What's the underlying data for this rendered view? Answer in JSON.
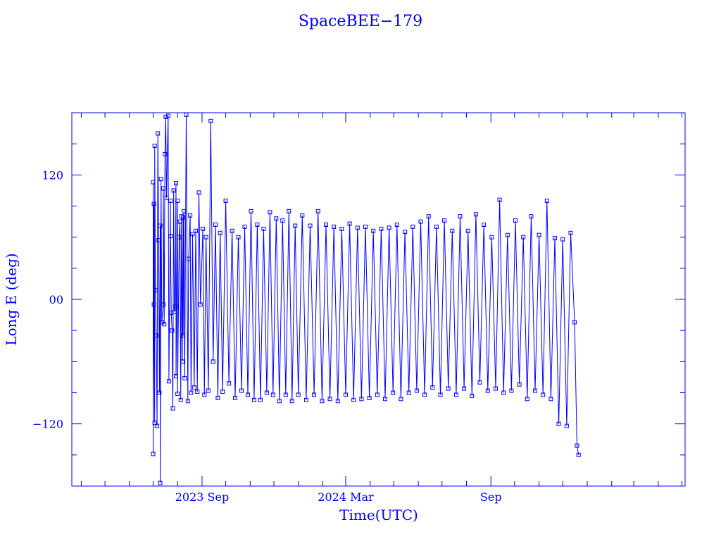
{
  "chart_data": {
    "type": "scatter",
    "title": "SpaceBEE−179",
    "xlabel": "Time(UTC)",
    "ylabel": "Long E (deg)",
    "x_tick_labels": [
      {
        "date": "2023-09-01",
        "label": "2023 Sep"
      },
      {
        "date": "2024-03-01",
        "label": "2024 Mar"
      },
      {
        "date": "2024-09-01",
        "label": "Sep"
      }
    ],
    "y_tick_labels": [
      {
        "value": 120,
        "label": "120"
      },
      {
        "value": 0,
        "label": "00"
      },
      {
        "value": -120,
        "label": "−120"
      }
    ],
    "xlim": [
      "2023-03-20",
      "2025-05-05"
    ],
    "ylim": [
      -180,
      180
    ],
    "data_start": "2023-07-01",
    "data_end": "2024-12-21",
    "line_color": "#0000ff",
    "marker": "open-square",
    "grid": false,
    "series": [
      {
        "points": [
          [
            "2023-07-01",
            113
          ],
          [
            "2023-07-01",
            -149
          ],
          [
            "2023-07-02",
            92
          ],
          [
            "2023-07-02",
            -5
          ],
          [
            "2023-07-03",
            -119
          ],
          [
            "2023-07-03",
            148
          ],
          [
            "2023-07-04",
            9
          ],
          [
            "2023-07-05",
            -35
          ],
          [
            "2023-07-06",
            -122
          ],
          [
            "2023-07-07",
            160
          ],
          [
            "2023-07-08",
            57
          ],
          [
            "2023-07-09",
            -90
          ],
          [
            "2023-07-10",
            71
          ],
          [
            "2023-07-10",
            -177
          ],
          [
            "2023-07-11",
            116
          ],
          [
            "2023-07-12",
            -22
          ],
          [
            "2023-07-14",
            -5
          ],
          [
            "2023-07-14",
            107
          ],
          [
            "2023-07-15",
            -24
          ],
          [
            "2023-07-16",
            140
          ],
          [
            "2023-07-17",
            176
          ],
          [
            "2023-07-18",
            98
          ],
          [
            "2023-07-20",
            177
          ],
          [
            "2023-07-21",
            -79
          ],
          [
            "2023-07-23",
            95
          ],
          [
            "2023-07-23",
            61
          ],
          [
            "2023-07-24",
            -13
          ],
          [
            "2023-07-25",
            -30
          ],
          [
            "2023-07-26",
            -105
          ],
          [
            "2023-07-27",
            105
          ],
          [
            "2023-07-28",
            -12
          ],
          [
            "2023-07-29",
            -7
          ],
          [
            "2023-07-30",
            112
          ],
          [
            "2023-07-30",
            -74
          ],
          [
            "2023-08-01",
            95
          ],
          [
            "2023-08-01",
            -91
          ],
          [
            "2023-08-03",
            60
          ],
          [
            "2023-08-04",
            75
          ],
          [
            "2023-08-05",
            -97
          ],
          [
            "2023-08-06",
            80
          ],
          [
            "2023-08-07",
            -60
          ],
          [
            "2023-08-08",
            79
          ],
          [
            "2023-08-08",
            -35
          ],
          [
            "2023-08-09",
            85
          ],
          [
            "2023-08-10",
            -76
          ],
          [
            "2023-08-12",
            178
          ],
          [
            "2023-08-14",
            -98
          ],
          [
            "2023-08-15",
            39
          ],
          [
            "2023-08-17",
            81
          ],
          [
            "2023-08-18",
            -90
          ],
          [
            "2023-08-20",
            63
          ],
          [
            "2023-08-22",
            -85
          ],
          [
            "2023-08-24",
            66
          ],
          [
            "2023-08-26",
            -89
          ],
          [
            "2023-08-28",
            103
          ],
          [
            "2023-08-30",
            -5
          ],
          [
            "2023-09-02",
            68
          ],
          [
            "2023-09-04",
            -92
          ],
          [
            "2023-09-06",
            60
          ],
          [
            "2023-09-09",
            -88
          ],
          [
            "2023-09-12",
            172
          ],
          [
            "2023-09-15",
            -60
          ],
          [
            "2023-09-18",
            72
          ],
          [
            "2023-09-21",
            -95
          ],
          [
            "2023-09-24",
            64
          ],
          [
            "2023-09-27",
            -89
          ],
          [
            "2023-10-01",
            95
          ],
          [
            "2023-10-05",
            -81
          ],
          [
            "2023-10-09",
            66
          ],
          [
            "2023-10-13",
            -95
          ],
          [
            "2023-10-17",
            60
          ],
          [
            "2023-10-21",
            -88
          ],
          [
            "2023-10-25",
            70
          ],
          [
            "2023-10-29",
            -92
          ],
          [
            "2023-11-02",
            85
          ],
          [
            "2023-11-06",
            -97
          ],
          [
            "2023-11-10",
            72
          ],
          [
            "2023-11-14",
            -97
          ],
          [
            "2023-11-18",
            68
          ],
          [
            "2023-11-22",
            -90
          ],
          [
            "2023-11-26",
            84
          ],
          [
            "2023-11-30",
            -92
          ],
          [
            "2023-12-04",
            78
          ],
          [
            "2023-12-08",
            -98
          ],
          [
            "2023-12-12",
            76
          ],
          [
            "2023-12-16",
            -92
          ],
          [
            "2023-12-20",
            85
          ],
          [
            "2023-12-24",
            -98
          ],
          [
            "2023-12-28",
            71
          ],
          [
            "2024-01-01",
            -92
          ],
          [
            "2024-01-06",
            81
          ],
          [
            "2024-01-11",
            -97
          ],
          [
            "2024-01-16",
            71
          ],
          [
            "2024-01-21",
            -92
          ],
          [
            "2024-01-26",
            85
          ],
          [
            "2024-01-31",
            -98
          ],
          [
            "2024-02-05",
            72
          ],
          [
            "2024-02-10",
            -96
          ],
          [
            "2024-02-15",
            70
          ],
          [
            "2024-02-20",
            -98
          ],
          [
            "2024-02-25",
            68
          ],
          [
            "2024-03-01",
            -92
          ],
          [
            "2024-03-06",
            73
          ],
          [
            "2024-03-11",
            -97
          ],
          [
            "2024-03-16",
            69
          ],
          [
            "2024-03-21",
            -96
          ],
          [
            "2024-03-26",
            70
          ],
          [
            "2024-03-31",
            -95
          ],
          [
            "2024-04-05",
            66
          ],
          [
            "2024-04-10",
            -92
          ],
          [
            "2024-04-15",
            68
          ],
          [
            "2024-04-20",
            -96
          ],
          [
            "2024-04-25",
            69
          ],
          [
            "2024-04-30",
            -90
          ],
          [
            "2024-05-05",
            72
          ],
          [
            "2024-05-10",
            -96
          ],
          [
            "2024-05-15",
            65
          ],
          [
            "2024-05-20",
            -90
          ],
          [
            "2024-05-25",
            70
          ],
          [
            "2024-05-30",
            -88
          ],
          [
            "2024-06-04",
            75
          ],
          [
            "2024-06-09",
            -92
          ],
          [
            "2024-06-14",
            80
          ],
          [
            "2024-06-19",
            -85
          ],
          [
            "2024-06-24",
            70
          ],
          [
            "2024-06-29",
            -92
          ],
          [
            "2024-07-04",
            76
          ],
          [
            "2024-07-09",
            -86
          ],
          [
            "2024-07-14",
            66
          ],
          [
            "2024-07-19",
            -92
          ],
          [
            "2024-07-24",
            80
          ],
          [
            "2024-07-29",
            -86
          ],
          [
            "2024-08-03",
            66
          ],
          [
            "2024-08-08",
            -93
          ],
          [
            "2024-08-13",
            82
          ],
          [
            "2024-08-18",
            -80
          ],
          [
            "2024-08-23",
            72
          ],
          [
            "2024-08-28",
            -88
          ],
          [
            "2024-09-02",
            60
          ],
          [
            "2024-09-07",
            -86
          ],
          [
            "2024-09-12",
            96
          ],
          [
            "2024-09-17",
            -90
          ],
          [
            "2024-09-22",
            62
          ],
          [
            "2024-09-27",
            -88
          ],
          [
            "2024-10-02",
            76
          ],
          [
            "2024-10-07",
            -82
          ],
          [
            "2024-10-12",
            60
          ],
          [
            "2024-10-17",
            -96
          ],
          [
            "2024-10-22",
            80
          ],
          [
            "2024-10-27",
            -88
          ],
          [
            "2024-11-01",
            62
          ],
          [
            "2024-11-06",
            -92
          ],
          [
            "2024-11-11",
            95
          ],
          [
            "2024-11-16",
            -96
          ],
          [
            "2024-11-21",
            59
          ],
          [
            "2024-11-26",
            -120
          ],
          [
            "2024-12-01",
            58
          ],
          [
            "2024-12-06",
            -122
          ],
          [
            "2024-12-11",
            64
          ],
          [
            "2024-12-16",
            -22
          ],
          [
            "2024-12-19",
            -141
          ],
          [
            "2024-12-21",
            -150
          ]
        ]
      }
    ]
  }
}
